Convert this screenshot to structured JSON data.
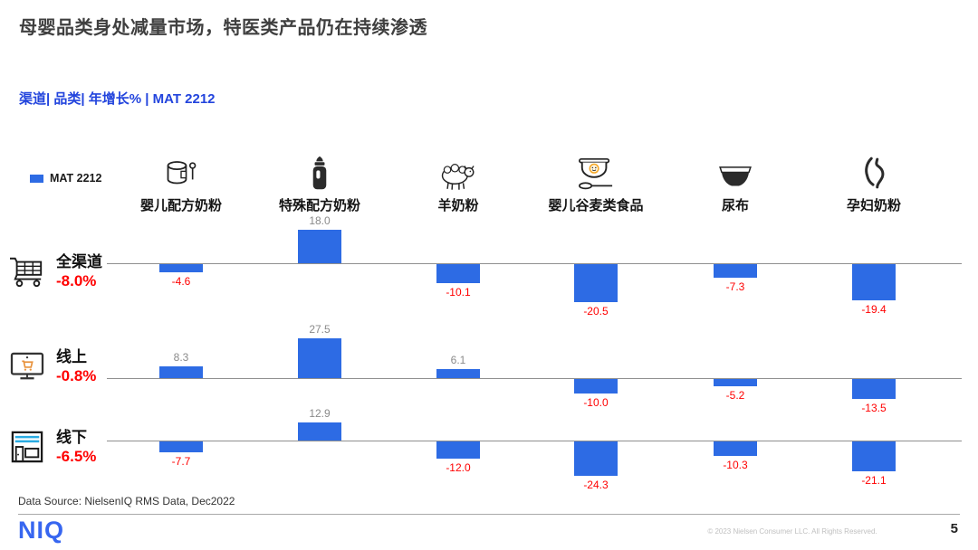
{
  "title": "母婴品类身处减量市场，特医类产品仍在持续渗透",
  "chart_data": {
    "type": "bar",
    "title": "渠道| 品类| 年增长% | MAT 2212",
    "legend_label": "MAT 2212",
    "bar_color": "#2d6be4",
    "positive_label_color": "#8a8a8a",
    "negative_label_color": "#ff0000",
    "categories": [
      "婴儿配方奶粉",
      "特殊配方奶粉",
      "羊奶粉",
      "婴儿谷麦类食品",
      "尿布",
      "孕妇奶粉"
    ],
    "category_icons": [
      "formula-can-icon",
      "baby-bottle-icon",
      "sheep-icon",
      "cereal-bowl-icon",
      "diaper-icon",
      "pregnant-woman-icon"
    ],
    "rows": [
      {
        "label": "全渠道",
        "icon": "shopping-cart-icon",
        "total": "-8.0%",
        "values": [
          -4.6,
          18.0,
          -10.1,
          -20.5,
          -7.3,
          -19.4
        ]
      },
      {
        "label": "线上",
        "icon": "online-monitor-icon",
        "total": "-0.8%",
        "values": [
          8.3,
          27.5,
          6.1,
          -10.0,
          -5.2,
          -13.5
        ]
      },
      {
        "label": "线下",
        "icon": "offline-store-icon",
        "total": "-6.5%",
        "values": [
          -7.7,
          12.9,
          -12.0,
          -24.3,
          -10.3,
          -21.1
        ]
      }
    ],
    "baseline_value": 0
  },
  "footer": {
    "source": "Data Source: NielsenIQ RMS Data, Dec2022",
    "logo": "NIQ",
    "copyright": "© 2023 Nielsen Consumer LLC. All Rights Reserved.",
    "page_number": "5"
  }
}
